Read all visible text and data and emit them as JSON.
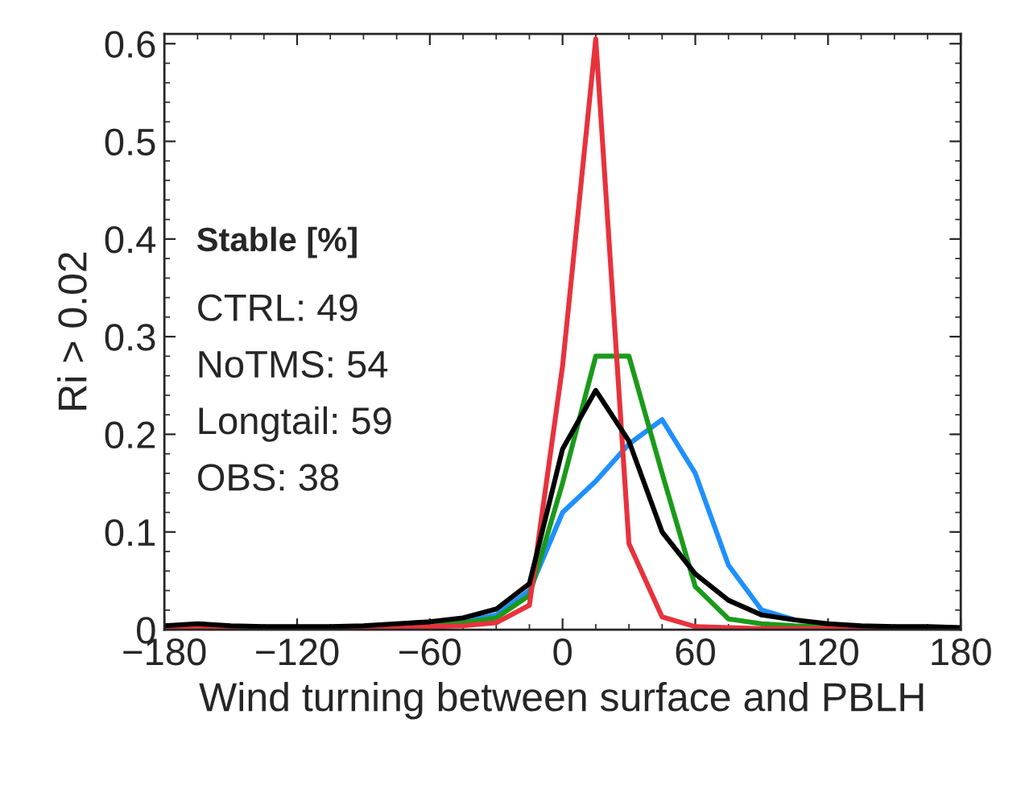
{
  "chart_data": {
    "type": "line",
    "xlabel": "Wind turning between surface and PBLH",
    "ylabel": "Ri > 0.02",
    "x": [
      -180,
      -165,
      -150,
      -135,
      -120,
      -105,
      -90,
      -75,
      -60,
      -45,
      -30,
      -15,
      0,
      15,
      30,
      45,
      60,
      75,
      90,
      105,
      120,
      135,
      150,
      165,
      180
    ],
    "series": [
      {
        "color": "#1e90ff",
        "values": [
          null,
          null,
          null,
          null,
          null,
          null,
          null,
          null,
          null,
          0.008,
          0.015,
          0.04,
          0.12,
          0.152,
          0.19,
          0.215,
          0.16,
          0.066,
          0.02,
          0.01,
          null,
          null,
          null,
          null,
          null
        ]
      },
      {
        "color": "#1a9a1a",
        "values": [
          null,
          null,
          null,
          null,
          null,
          null,
          null,
          0.004,
          0.005,
          0.007,
          0.012,
          0.035,
          0.15,
          0.28,
          0.28,
          0.16,
          0.044,
          0.011,
          0.006,
          0.004,
          0.003,
          0.002,
          null,
          null,
          null
        ]
      },
      {
        "color": "#e8323c",
        "values": [
          0.001,
          0.001,
          0.001,
          0.001,
          0.001,
          0.001,
          0.002,
          0.002,
          0.003,
          0.004,
          0.007,
          0.025,
          0.27,
          0.605,
          0.088,
          0.013,
          0.003,
          0.002,
          0.001,
          0.001,
          0.001,
          0.001,
          0.001,
          null,
          null
        ]
      },
      {
        "color": "#000000",
        "values": [
          0.004,
          0.006,
          0.004,
          0.003,
          0.003,
          0.003,
          0.004,
          0.006,
          0.008,
          0.012,
          0.021,
          0.047,
          0.185,
          0.245,
          0.193,
          0.1,
          0.057,
          0.03,
          0.015,
          0.01,
          0.006,
          0.004,
          0.003,
          0.003,
          0.002
        ]
      }
    ],
    "xlim": [
      -180,
      180
    ],
    "ylim": [
      0,
      0.61
    ],
    "xticks": [
      {
        "value": -180,
        "label": "−180"
      },
      {
        "value": -120,
        "label": "−120"
      },
      {
        "value": -60,
        "label": "−60"
      },
      0,
      60,
      120,
      180
    ],
    "yticks": [
      0,
      0.1,
      0.2,
      0.3,
      0.4,
      0.5,
      0.6
    ],
    "annotations": [
      "Stable [%]",
      "CTRL: 49",
      "NoTMS: 54",
      "Longtail: 59",
      "OBS: 38"
    ],
    "grid": false,
    "legend": false,
    "marker": "none",
    "line_style": "solid"
  }
}
